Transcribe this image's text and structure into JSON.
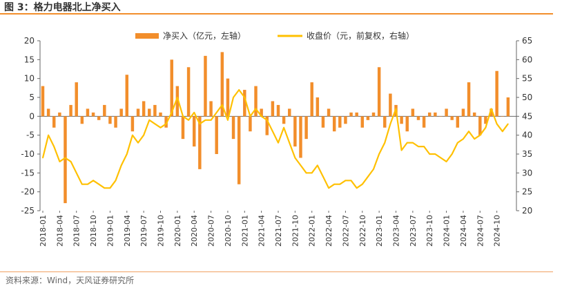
{
  "figure": {
    "title": "图 3：格力电器北上净买入",
    "source": "资料来源：Wind，天风证券研究所"
  },
  "colors": {
    "bars": "#f28e2b",
    "line": "#ffc000",
    "rule": "#f28e2b",
    "axis": "#666666"
  },
  "chart_data": {
    "type": "bar",
    "legend_position": "top",
    "grid": false,
    "series": [
      {
        "name": "净买入（亿元，左轴）",
        "type": "bar",
        "axis": "left",
        "x": [
          "2018-01",
          "2018-02",
          "2018-03",
          "2018-04",
          "2018-05",
          "2018-06",
          "2018-07",
          "2018-08",
          "2018-09",
          "2018-10",
          "2018-11",
          "2018-12",
          "2019-01",
          "2019-02",
          "2019-03",
          "2019-04",
          "2019-05",
          "2019-06",
          "2019-07",
          "2019-08",
          "2019-09",
          "2019-10",
          "2019-11",
          "2019-12",
          "2020-01",
          "2020-02",
          "2020-03",
          "2020-04",
          "2020-05",
          "2020-06",
          "2020-07",
          "2020-08",
          "2020-09",
          "2020-10",
          "2020-11",
          "2020-12",
          "2021-01",
          "2021-02",
          "2021-03",
          "2021-04",
          "2021-05",
          "2021-06",
          "2021-07",
          "2021-08",
          "2021-09",
          "2021-10",
          "2021-11",
          "2021-12",
          "2022-01",
          "2022-02",
          "2022-03",
          "2022-04",
          "2022-05",
          "2022-06",
          "2022-07",
          "2022-08",
          "2022-09",
          "2022-10",
          "2022-11",
          "2022-12",
          "2023-01",
          "2023-02",
          "2023-03",
          "2023-04",
          "2023-05",
          "2023-06",
          "2023-07",
          "2023-08",
          "2023-09",
          "2023-10",
          "2023-11",
          "2023-12",
          "2024-01",
          "2024-02",
          "2024-03",
          "2024-04",
          "2024-05",
          "2024-06",
          "2024-07",
          "2024-08",
          "2024-09",
          "2024-10",
          "2024-11",
          "2024-12"
        ],
        "values": [
          8,
          2,
          -3,
          1,
          -23,
          3,
          9,
          -2,
          2,
          1,
          -1,
          3,
          -2,
          -3,
          2,
          11,
          -4,
          2,
          4,
          2,
          3,
          1,
          -3,
          15,
          8,
          -6,
          13,
          -8,
          -14,
          16,
          4,
          -10,
          17,
          10,
          -6,
          -18,
          7,
          -4,
          8,
          2,
          -5,
          4,
          3,
          -2,
          2,
          -8,
          -11,
          -6,
          9,
          5,
          -3,
          2,
          -4,
          -3,
          -2,
          1,
          1,
          -3,
          -1,
          1,
          13,
          -3,
          6,
          3,
          -2,
          -4,
          2,
          -1,
          -3,
          1,
          1,
          0,
          2,
          -1,
          -3,
          2,
          9,
          1,
          -5,
          -2,
          2,
          12,
          0,
          5
        ]
      },
      {
        "name": "收盘价（元，前复权，右轴）",
        "type": "line",
        "axis": "right",
        "x": [
          "2018-01",
          "2018-02",
          "2018-03",
          "2018-04",
          "2018-05",
          "2018-06",
          "2018-07",
          "2018-08",
          "2018-09",
          "2018-10",
          "2018-11",
          "2018-12",
          "2019-01",
          "2019-02",
          "2019-03",
          "2019-04",
          "2019-05",
          "2019-06",
          "2019-07",
          "2019-08",
          "2019-09",
          "2019-10",
          "2019-11",
          "2019-12",
          "2020-01",
          "2020-02",
          "2020-03",
          "2020-04",
          "2020-05",
          "2020-06",
          "2020-07",
          "2020-08",
          "2020-09",
          "2020-10",
          "2020-11",
          "2020-12",
          "2021-01",
          "2021-02",
          "2021-03",
          "2021-04",
          "2021-05",
          "2021-06",
          "2021-07",
          "2021-08",
          "2021-09",
          "2021-10",
          "2021-11",
          "2021-12",
          "2022-01",
          "2022-02",
          "2022-03",
          "2022-04",
          "2022-05",
          "2022-06",
          "2022-07",
          "2022-08",
          "2022-09",
          "2022-10",
          "2022-11",
          "2022-12",
          "2023-01",
          "2023-02",
          "2023-03",
          "2023-04",
          "2023-05",
          "2023-06",
          "2023-07",
          "2023-08",
          "2023-09",
          "2023-10",
          "2023-11",
          "2023-12",
          "2024-01",
          "2024-02",
          "2024-03",
          "2024-04",
          "2024-05",
          "2024-06",
          "2024-07",
          "2024-08",
          "2024-09",
          "2024-10",
          "2024-11",
          "2024-12"
        ],
        "values": [
          34,
          40,
          37,
          33,
          34,
          33,
          30,
          27,
          27,
          28,
          27,
          26,
          26,
          28,
          32,
          35,
          40,
          38,
          40,
          44,
          43,
          42,
          43,
          46,
          50,
          45,
          44,
          46,
          43,
          44,
          44,
          46,
          48,
          44,
          50,
          52,
          50,
          45,
          47,
          45,
          44,
          41,
          38,
          42,
          38,
          34,
          32,
          30,
          30,
          32,
          29,
          26,
          27,
          27,
          28,
          28,
          26,
          27,
          29,
          31,
          35,
          38,
          43,
          47,
          36,
          38,
          38,
          37,
          37,
          35,
          35,
          34,
          33,
          35,
          38,
          39,
          41,
          39,
          40,
          42,
          47,
          43,
          41,
          43
        ]
      }
    ],
    "axes": {
      "x": {
        "tick_labels": [
          "2018-01",
          "2018-04",
          "2018-07",
          "2018-10",
          "2019-01",
          "2019-04",
          "2019-07",
          "2019-10",
          "2020-01",
          "2020-04",
          "2020-07",
          "2020-10",
          "2021-01",
          "2021-04",
          "2021-07",
          "2021-10",
          "2022-01",
          "2022-04",
          "2022-07",
          "2022-10",
          "2023-01",
          "2023-04",
          "2023-07",
          "2023-10",
          "2024-01",
          "2024-04",
          "2024-07",
          "2024-10"
        ]
      },
      "y_left": {
        "ylim": [
          -25,
          20
        ],
        "ticks": [
          "20",
          "15",
          "10",
          "5",
          "0",
          "-5",
          "-10",
          "-15",
          "-20",
          "-25"
        ]
      },
      "y_right": {
        "ylim": [
          20,
          65
        ],
        "ticks": [
          "65",
          "60",
          "55",
          "50",
          "45",
          "40",
          "35",
          "30",
          "25",
          "20"
        ]
      }
    }
  }
}
